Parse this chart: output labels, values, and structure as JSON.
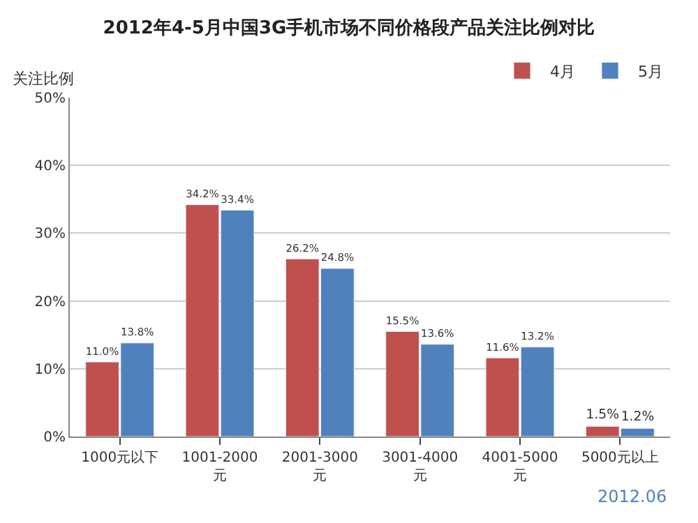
{
  "chart_data": {
    "type": "bar",
    "title": "2012年4-5月中国3G手机市场不同价格段产品关注比例对比",
    "ylabel": "关注比例",
    "categories": [
      "1000元以下",
      "1001-2000元",
      "2001-3000元",
      "3001-4000元",
      "4001-5000元",
      "5000元以上"
    ],
    "series": [
      {
        "name": "4月",
        "color": "#c0504d",
        "values": [
          11.0,
          34.2,
          26.2,
          15.5,
          11.6,
          1.5
        ],
        "value_labels": [
          "11.0%",
          "34.2%",
          "26.2%",
          "15.5%",
          "11.6%",
          "1.5%"
        ]
      },
      {
        "name": "5月",
        "color": "#4f81bd",
        "values": [
          13.8,
          33.4,
          24.8,
          13.6,
          13.2,
          1.2
        ],
        "value_labels": [
          "13.8%",
          "33.4%",
          "24.8%",
          "13.6%",
          "13.2%",
          "1.2%"
        ]
      }
    ],
    "ylim": [
      0,
      50
    ],
    "yticks": [
      {
        "value": 0,
        "label": "0%"
      },
      {
        "value": 10,
        "label": "10%"
      },
      {
        "value": 20,
        "label": "20%"
      },
      {
        "value": 30,
        "label": "30%"
      },
      {
        "value": 40,
        "label": "40%"
      },
      {
        "value": 50,
        "label": "50%"
      }
    ],
    "grid": "y",
    "legend": "top right",
    "annotations": [
      "2012.06"
    ]
  }
}
